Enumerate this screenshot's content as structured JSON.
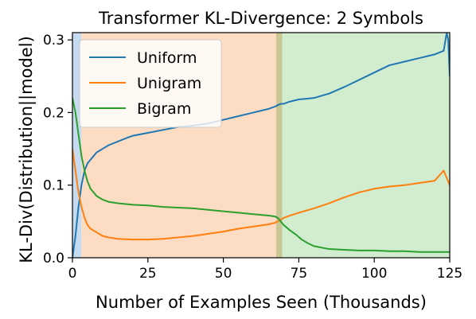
{
  "chart_data": {
    "type": "line",
    "title": "Transformer KL-Divergence: 2 Symbols",
    "xlabel": "Number of Examples Seen (Thousands)",
    "ylabel": "KL-Div(Distribution||model)",
    "xlim": [
      0,
      125
    ],
    "ylim": [
      0,
      0.31
    ],
    "xticks": [
      0,
      25,
      50,
      75,
      100,
      125
    ],
    "yticks": [
      0.0,
      0.1,
      0.2,
      0.3
    ],
    "xtick_labels": [
      "0",
      "25",
      "50",
      "75",
      "100",
      "125"
    ],
    "ytick_labels": [
      "0.0",
      "0.1",
      "0.2",
      "0.3"
    ],
    "legend_position": "top-left",
    "phases": [
      {
        "start": 0,
        "end": 3,
        "color": "#c6dbef"
      },
      {
        "start": 3,
        "end": 67.5,
        "color": "#fddcc4"
      },
      {
        "start": 67.5,
        "end": 69.5,
        "color": "#c8c793"
      },
      {
        "start": 69.5,
        "end": 125,
        "color": "#d2ecd0"
      }
    ],
    "series": [
      {
        "name": "Uniform",
        "color": "#1f77b4",
        "x": [
          0,
          1,
          2,
          3,
          4,
          5,
          6,
          7,
          8,
          10,
          12,
          15,
          18,
          20,
          25,
          30,
          35,
          40,
          45,
          50,
          55,
          60,
          65,
          67,
          68,
          69,
          70,
          72,
          75,
          80,
          85,
          90,
          95,
          100,
          105,
          110,
          115,
          120,
          123,
          124,
          124.5,
          125
        ],
        "y": [
          0.0,
          0.03,
          0.07,
          0.1,
          0.12,
          0.13,
          0.135,
          0.14,
          0.145,
          0.15,
          0.155,
          0.16,
          0.165,
          0.168,
          0.172,
          0.176,
          0.18,
          0.182,
          0.185,
          0.19,
          0.195,
          0.2,
          0.205,
          0.208,
          0.21,
          0.212,
          0.212,
          0.215,
          0.218,
          0.22,
          0.226,
          0.235,
          0.245,
          0.255,
          0.265,
          0.27,
          0.275,
          0.28,
          0.285,
          0.31,
          0.3,
          0.25
        ]
      },
      {
        "name": "Unigram",
        "color": "#ff7f0e",
        "x": [
          0,
          1,
          2,
          3,
          4,
          5,
          6,
          8,
          10,
          12,
          15,
          20,
          25,
          30,
          35,
          40,
          45,
          50,
          55,
          60,
          65,
          67,
          68,
          69,
          70,
          72,
          75,
          80,
          85,
          90,
          95,
          100,
          105,
          110,
          115,
          120,
          123,
          124,
          125
        ],
        "y": [
          0.15,
          0.12,
          0.09,
          0.07,
          0.055,
          0.045,
          0.04,
          0.035,
          0.03,
          0.028,
          0.026,
          0.025,
          0.025,
          0.026,
          0.028,
          0.03,
          0.033,
          0.036,
          0.04,
          0.043,
          0.046,
          0.048,
          0.05,
          0.052,
          0.055,
          0.058,
          0.062,
          0.068,
          0.075,
          0.083,
          0.09,
          0.095,
          0.098,
          0.1,
          0.103,
          0.106,
          0.12,
          0.11,
          0.1
        ]
      },
      {
        "name": "Bigram",
        "color": "#2ca02c",
        "x": [
          0,
          1,
          2,
          3,
          4,
          5,
          6,
          8,
          10,
          12,
          15,
          20,
          25,
          30,
          35,
          40,
          45,
          50,
          55,
          60,
          65,
          67,
          68,
          69,
          70,
          72,
          74,
          76,
          78,
          80,
          85,
          90,
          95,
          100,
          105,
          110,
          115,
          120,
          125
        ],
        "y": [
          0.22,
          0.2,
          0.17,
          0.14,
          0.12,
          0.105,
          0.095,
          0.085,
          0.08,
          0.077,
          0.075,
          0.073,
          0.072,
          0.07,
          0.069,
          0.068,
          0.066,
          0.064,
          0.062,
          0.06,
          0.058,
          0.057,
          0.055,
          0.05,
          0.045,
          0.038,
          0.032,
          0.025,
          0.02,
          0.016,
          0.012,
          0.011,
          0.01,
          0.01,
          0.009,
          0.009,
          0.008,
          0.008,
          0.008
        ]
      }
    ]
  }
}
